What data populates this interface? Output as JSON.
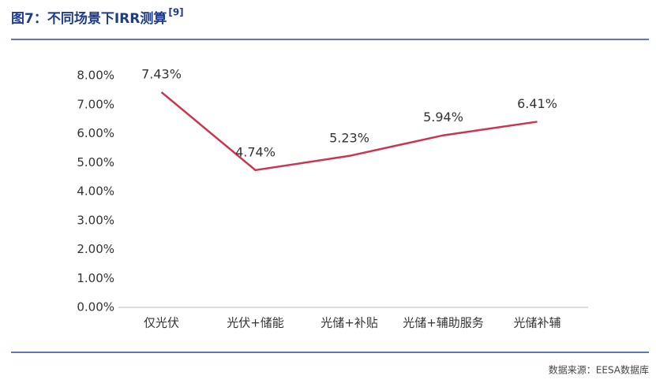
{
  "chart_data": {
    "type": "line",
    "title": "图7：不同场景下IRR测算",
    "title_superscript": "[9]",
    "source": "数据来源：EESA数据库",
    "categories": [
      "仅光伏",
      "光伏+储能",
      "光储+补贴",
      "光储+辅助服务",
      "光储补辅"
    ],
    "values": [
      7.43,
      4.74,
      5.23,
      5.94,
      6.41
    ],
    "value_labels": [
      "7.43%",
      "4.74%",
      "5.23%",
      "5.94%",
      "6.41%"
    ],
    "color": "#c8364f",
    "ylim": [
      0,
      8
    ],
    "yticks": [
      {
        "value": 0,
        "label": "0.00%"
      },
      {
        "value": 1,
        "label": "1.00%"
      },
      {
        "value": 2,
        "label": "2.00%"
      },
      {
        "value": 3,
        "label": "3.00%"
      },
      {
        "value": 4,
        "label": "4.00%"
      },
      {
        "value": 5,
        "label": "5.00%"
      },
      {
        "value": 6,
        "label": "6.00%"
      },
      {
        "value": 7,
        "label": "7.00%"
      },
      {
        "value": 8,
        "label": "8.00%"
      }
    ],
    "grid": false
  }
}
